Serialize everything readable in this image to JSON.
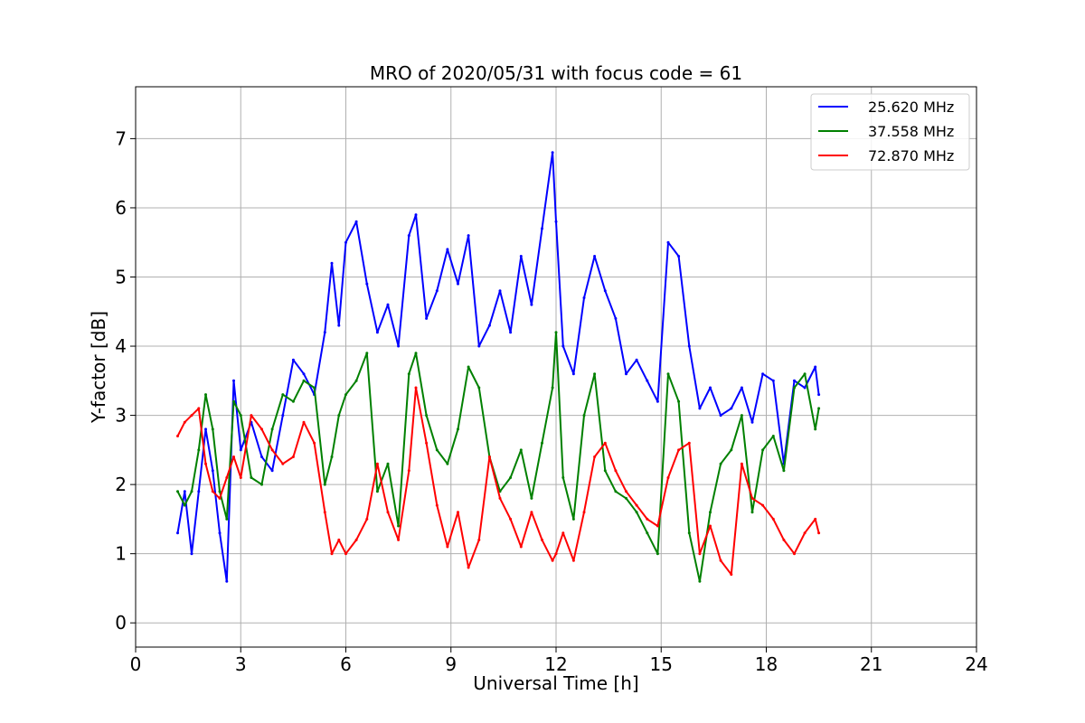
{
  "chart_data": {
    "type": "line",
    "title": "MRO of 2020/05/31 with focus code = 61",
    "xlabel": "Universal Time [h]",
    "ylabel": "Y-factor [dB]",
    "xlim": [
      0,
      24
    ],
    "ylim": [
      -0.35,
      7.75
    ],
    "xticks": [
      0,
      3,
      6,
      9,
      12,
      15,
      18,
      21,
      24
    ],
    "yticks": [
      0,
      1,
      2,
      3,
      4,
      5,
      6,
      7
    ],
    "grid": true,
    "legend_position": "top-right",
    "series": [
      {
        "name": "25.620 MHz",
        "color": "#0000ff",
        "x": [
          1.2,
          1.4,
          1.6,
          1.8,
          2.0,
          2.2,
          2.4,
          2.6,
          2.8,
          3.0,
          3.3,
          3.6,
          3.9,
          4.2,
          4.5,
          4.8,
          5.1,
          5.4,
          5.6,
          5.8,
          6.0,
          6.3,
          6.6,
          6.9,
          7.2,
          7.5,
          7.8,
          8.0,
          8.3,
          8.6,
          8.9,
          9.2,
          9.5,
          9.8,
          10.1,
          10.4,
          10.7,
          11.0,
          11.3,
          11.6,
          11.9,
          12.0,
          12.2,
          12.5,
          12.8,
          13.1,
          13.4,
          13.7,
          14.0,
          14.3,
          14.6,
          14.9,
          15.2,
          15.5,
          15.8,
          16.1,
          16.4,
          16.7,
          17.0,
          17.3,
          17.6,
          17.9,
          18.2,
          18.5,
          18.8,
          19.1,
          19.4,
          19.5
        ],
        "y": [
          1.3,
          1.9,
          1.0,
          1.9,
          2.8,
          2.2,
          1.3,
          0.6,
          3.5,
          2.5,
          2.9,
          2.4,
          2.2,
          3.0,
          3.8,
          3.6,
          3.3,
          4.2,
          5.2,
          4.3,
          5.5,
          5.8,
          4.9,
          4.2,
          4.6,
          4.0,
          5.6,
          5.9,
          4.4,
          4.8,
          5.4,
          4.9,
          5.6,
          4.0,
          4.3,
          4.8,
          4.2,
          5.3,
          4.6,
          5.7,
          6.8,
          5.8,
          4.0,
          3.6,
          4.7,
          5.3,
          4.8,
          4.4,
          3.6,
          3.8,
          3.5,
          3.2,
          5.5,
          5.3,
          4.0,
          3.1,
          3.4,
          3.0,
          3.1,
          3.4,
          2.9,
          3.6,
          3.5,
          2.3,
          3.5,
          3.4,
          3.7,
          3.3
        ]
      },
      {
        "name": "37.558 MHz",
        "color": "#008000",
        "x": [
          1.2,
          1.4,
          1.6,
          1.8,
          2.0,
          2.2,
          2.4,
          2.6,
          2.8,
          3.0,
          3.3,
          3.6,
          3.9,
          4.2,
          4.5,
          4.8,
          5.1,
          5.4,
          5.6,
          5.8,
          6.0,
          6.3,
          6.6,
          6.9,
          7.2,
          7.5,
          7.8,
          8.0,
          8.3,
          8.6,
          8.9,
          9.2,
          9.5,
          9.8,
          10.1,
          10.4,
          10.7,
          11.0,
          11.3,
          11.6,
          11.9,
          12.0,
          12.2,
          12.5,
          12.8,
          13.1,
          13.4,
          13.7,
          14.0,
          14.3,
          14.6,
          14.9,
          15.2,
          15.5,
          15.8,
          16.1,
          16.4,
          16.7,
          17.0,
          17.3,
          17.6,
          17.9,
          18.2,
          18.5,
          18.8,
          19.1,
          19.4,
          19.5
        ],
        "y": [
          1.9,
          1.7,
          1.9,
          2.5,
          3.3,
          2.8,
          1.9,
          1.5,
          3.2,
          3.0,
          2.1,
          2.0,
          2.8,
          3.3,
          3.2,
          3.5,
          3.4,
          2.0,
          2.4,
          3.0,
          3.3,
          3.5,
          3.9,
          1.9,
          2.3,
          1.4,
          3.6,
          3.9,
          3.0,
          2.5,
          2.3,
          2.8,
          3.7,
          3.4,
          2.4,
          1.9,
          2.1,
          2.5,
          1.8,
          2.6,
          3.4,
          4.2,
          2.1,
          1.5,
          3.0,
          3.6,
          2.2,
          1.9,
          1.8,
          1.6,
          1.3,
          1.0,
          3.6,
          3.2,
          1.3,
          0.6,
          1.6,
          2.3,
          2.5,
          3.0,
          1.6,
          2.5,
          2.7,
          2.2,
          3.4,
          3.6,
          2.8,
          3.1
        ]
      },
      {
        "name": "72.870 MHz",
        "color": "#ff0000",
        "x": [
          1.2,
          1.4,
          1.6,
          1.8,
          2.0,
          2.2,
          2.4,
          2.6,
          2.8,
          3.0,
          3.3,
          3.6,
          3.9,
          4.2,
          4.5,
          4.8,
          5.1,
          5.4,
          5.6,
          5.8,
          6.0,
          6.3,
          6.6,
          6.9,
          7.2,
          7.5,
          7.8,
          8.0,
          8.3,
          8.6,
          8.9,
          9.2,
          9.5,
          9.8,
          10.1,
          10.4,
          10.7,
          11.0,
          11.3,
          11.6,
          11.9,
          12.0,
          12.2,
          12.5,
          12.8,
          13.1,
          13.4,
          13.7,
          14.0,
          14.3,
          14.6,
          14.9,
          15.2,
          15.5,
          15.8,
          16.1,
          16.4,
          16.7,
          17.0,
          17.3,
          17.6,
          17.9,
          18.2,
          18.5,
          18.8,
          19.1,
          19.4,
          19.5
        ],
        "y": [
          2.7,
          2.9,
          3.0,
          3.1,
          2.3,
          1.9,
          1.8,
          2.1,
          2.4,
          2.1,
          3.0,
          2.8,
          2.5,
          2.3,
          2.4,
          2.9,
          2.6,
          1.6,
          1.0,
          1.2,
          1.0,
          1.2,
          1.5,
          2.3,
          1.6,
          1.2,
          2.2,
          3.4,
          2.6,
          1.7,
          1.1,
          1.6,
          0.8,
          1.2,
          2.4,
          1.8,
          1.5,
          1.1,
          1.6,
          1.2,
          0.9,
          1.0,
          1.3,
          0.9,
          1.6,
          2.4,
          2.6,
          2.2,
          1.9,
          1.7,
          1.5,
          1.4,
          2.1,
          2.5,
          2.6,
          1.0,
          1.4,
          0.9,
          0.7,
          2.3,
          1.8,
          1.7,
          1.5,
          1.2,
          1.0,
          1.3,
          1.5,
          1.3
        ]
      }
    ]
  }
}
